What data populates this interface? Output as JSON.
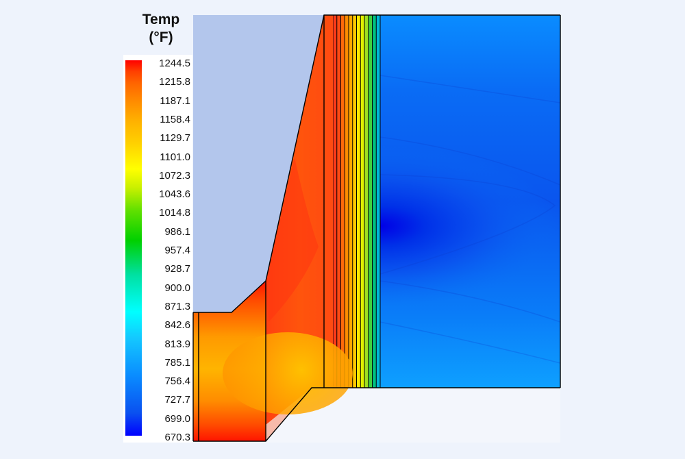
{
  "legend": {
    "title_line1": "Temp",
    "title_line2": "(°F)",
    "labels": [
      "1244.5",
      "1215.8",
      "1187.1",
      "1158.4",
      "1129.7",
      "1101.0",
      "1072.3",
      "1043.6",
      "1014.8",
      "986.1",
      "957.4",
      "928.7",
      "900.0",
      "871.3",
      "842.6",
      "813.9",
      "785.1",
      "756.4",
      "727.7",
      "699.0",
      "670.3"
    ],
    "colormap": [
      "#0000ff",
      "#0a50f0",
      "#0a8cff",
      "#14c8ff",
      "#00ffff",
      "#00e0a0",
      "#00d000",
      "#60e000",
      "#c8f000",
      "#ffff00",
      "#ffd000",
      "#ffb000",
      "#ff8c00",
      "#ff6400",
      "#ff4000",
      "#ff0000"
    ]
  },
  "colors": {
    "background": "#eef3fc",
    "sky": "#b3c6ec",
    "ground": "#f3f6fc",
    "outline": "#000000"
  },
  "layers": [
    "#ff3a1a",
    "#ff4a14",
    "#ff6a0a",
    "#ff8c00",
    "#ffa800",
    "#ffc800",
    "#ffe800",
    "#e0f000",
    "#a0e020",
    "#40d040",
    "#00c080",
    "#00b8d8"
  ]
}
